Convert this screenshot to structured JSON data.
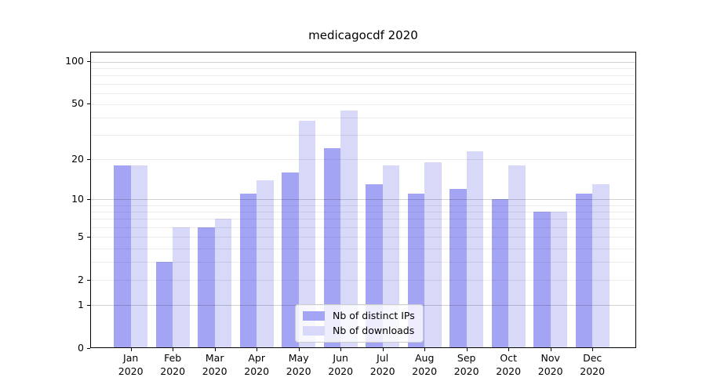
{
  "chart_data": {
    "type": "bar",
    "title": "medicagocdf 2020",
    "categories": [
      "Jan 2020",
      "Feb 2020",
      "Mar 2020",
      "Apr 2020",
      "May 2020",
      "Jun 2020",
      "Jul 2020",
      "Aug 2020",
      "Sep 2020",
      "Oct 2020",
      "Nov 2020",
      "Dec 2020"
    ],
    "x_tick_line1": [
      "Jan",
      "Feb",
      "Mar",
      "Apr",
      "May",
      "Jun",
      "Jul",
      "Aug",
      "Sep",
      "Oct",
      "Nov",
      "Dec"
    ],
    "x_tick_line2": [
      "2020",
      "2020",
      "2020",
      "2020",
      "2020",
      "2020",
      "2020",
      "2020",
      "2020",
      "2020",
      "2020",
      "2020"
    ],
    "series": [
      {
        "name": "Nb of distinct IPs",
        "color": "#a4a4f4",
        "values": [
          18,
          3,
          6,
          11,
          16,
          24,
          13,
          11,
          12,
          10,
          8,
          11
        ]
      },
      {
        "name": "Nb of downloads",
        "color": "#d8d8f8",
        "values": [
          18,
          6,
          7,
          14,
          38,
          45,
          18,
          19,
          23,
          18,
          8,
          13
        ]
      }
    ],
    "xlabel": "",
    "ylabel": "",
    "yscale": "log1p",
    "y_tick_values": [
      0,
      1,
      2,
      5,
      10,
      20,
      50,
      100
    ],
    "y_tick_labels": [
      "0",
      "1",
      "2",
      "5",
      "10",
      "20",
      "50",
      "100"
    ],
    "y_minor_grid_values": [
      2,
      3,
      4,
      5,
      6,
      7,
      8,
      9,
      20,
      30,
      40,
      50,
      60,
      70,
      80,
      90
    ],
    "y_major_grid_values": [
      1,
      10,
      100
    ],
    "ylim": [
      0,
      117
    ],
    "grid": true,
    "legend_position": "lower center",
    "colors": {
      "bar_distinct_ips": "#a4a4f4",
      "bar_downloads": "#d8d8f8",
      "grid_major": "rgba(0,0,0,0.18)",
      "grid_minor": "rgba(0,0,0,0.07)",
      "spine": "#000000",
      "legend_border": "#cccccc",
      "legend_background": "rgba(255,255,255,0.8)"
    }
  },
  "legend": {
    "entry_ips": "Nb of distinct IPs",
    "entry_downloads": "Nb of downloads"
  }
}
